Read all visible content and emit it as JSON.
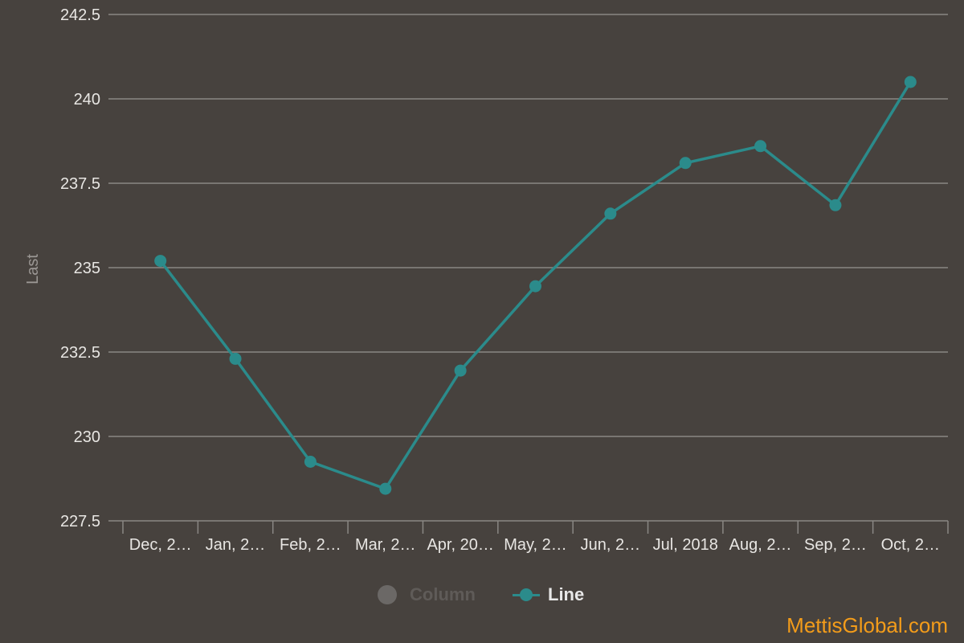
{
  "chart_data": {
    "type": "line",
    "ylabel": "Last",
    "ylim": [
      227.5,
      242.5
    ],
    "yticks": [
      "242.5",
      "240",
      "237.5",
      "235",
      "232.5",
      "230",
      "227.5"
    ],
    "ytick_values": [
      242.5,
      240,
      237.5,
      235,
      232.5,
      230,
      227.5
    ],
    "categories": [
      "Dec, 2…",
      "Jan, 2…",
      "Feb, 2…",
      "Mar, 2…",
      "Apr, 20…",
      "May, 2…",
      "Jun, 2…",
      "Jul, 2018",
      "Aug, 2…",
      "Sep, 2…",
      "Oct, 2…"
    ],
    "series": [
      {
        "name": "Line",
        "values": [
          235.2,
          232.3,
          229.25,
          228.45,
          231.95,
          234.45,
          236.6,
          238.1,
          238.6,
          236.85,
          240.5
        ]
      }
    ],
    "grid": true,
    "legend_position": "bottom-center",
    "colors": {
      "line": "#2b8b8b",
      "grid": "#8a8784",
      "text": "#e8e6e3",
      "axis_title": "#9b9794",
      "background": "#47423e"
    }
  },
  "legend": {
    "column_label": "Column",
    "line_label": "Line"
  },
  "watermark": "MettisGlobal.com"
}
